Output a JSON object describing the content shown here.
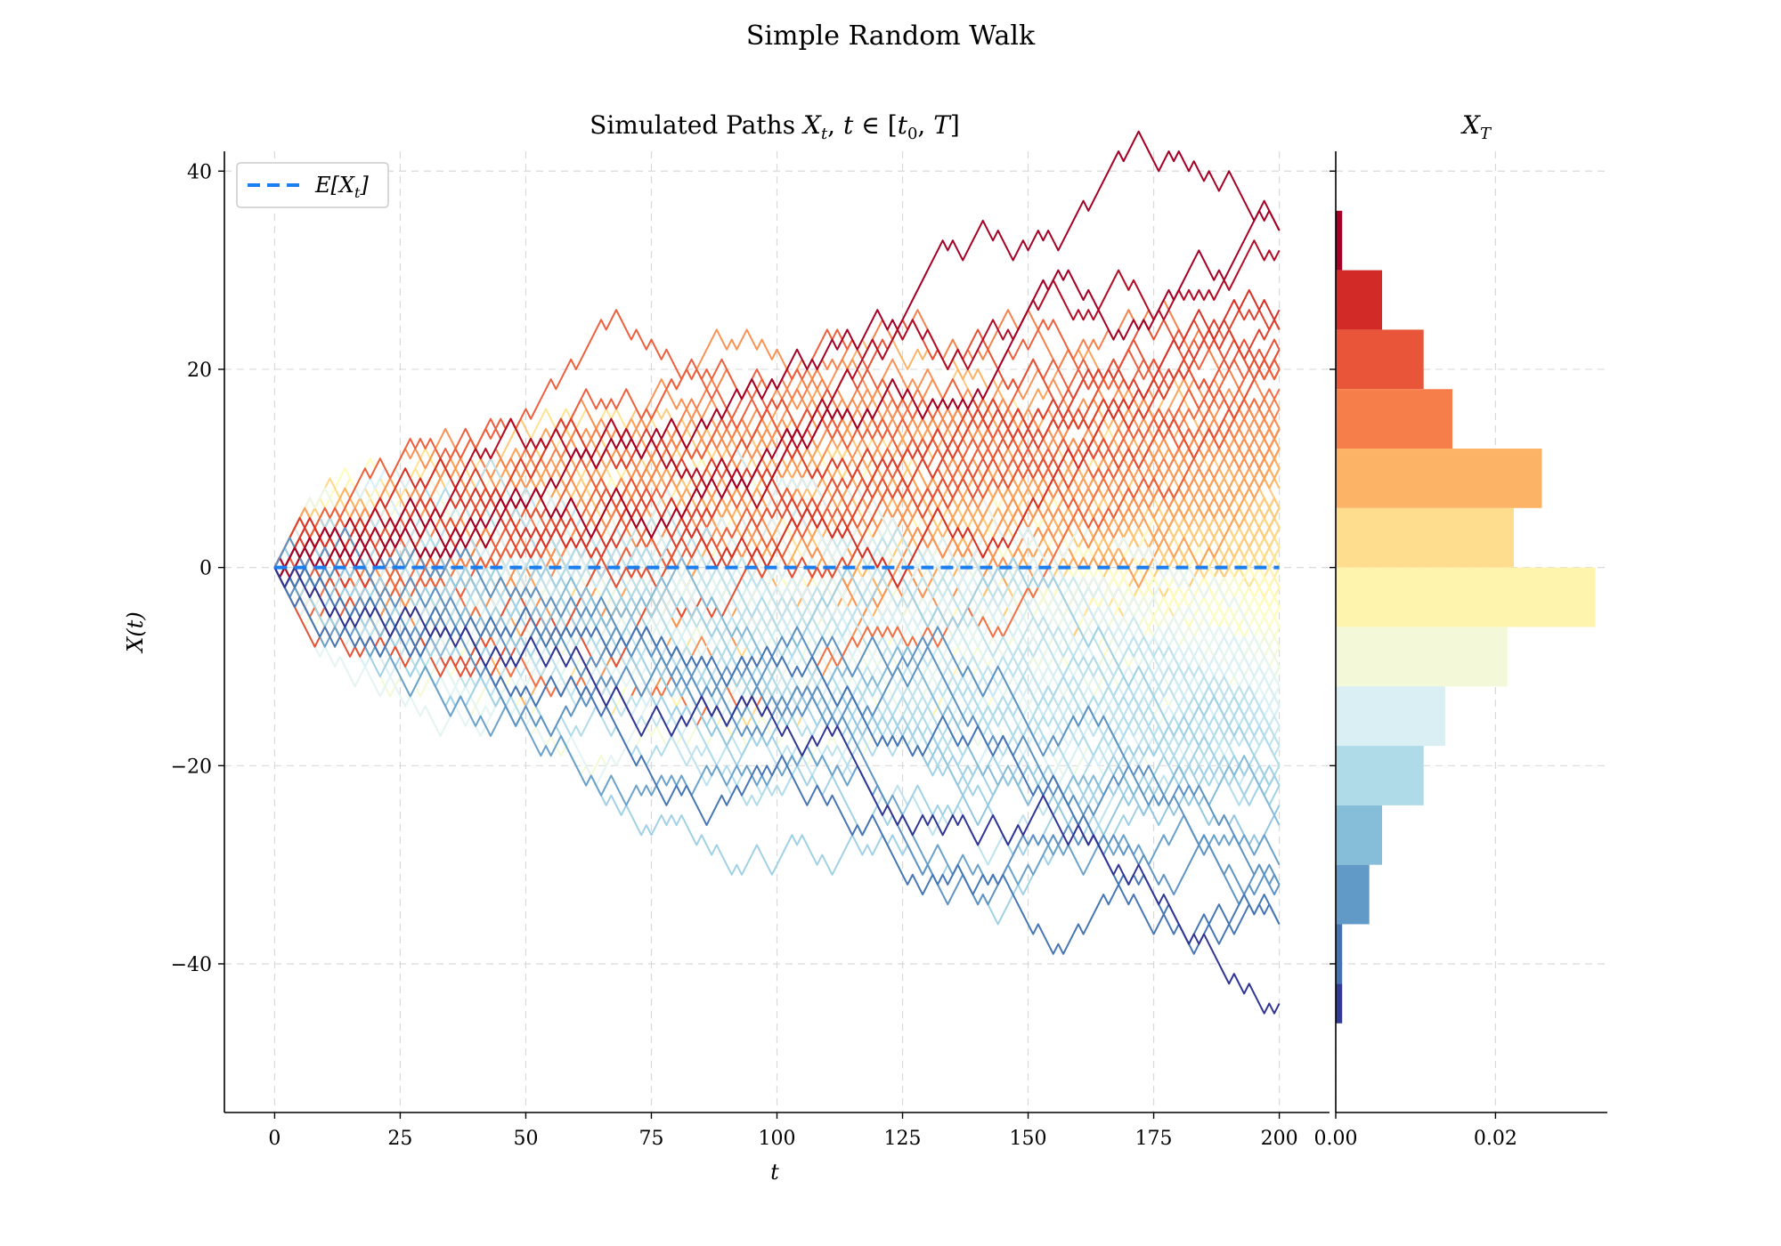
{
  "figure": {
    "suptitle": "Simple Random Walk"
  },
  "chart_data": [
    {
      "type": "line",
      "title": "Simulated Paths X_t, t ∈ [t_0, T]",
      "xlabel": "t",
      "ylabel": "X(t)",
      "xlim": [
        -10,
        210
      ],
      "ylim": [
        -55,
        42
      ],
      "xticks": [
        0,
        25,
        50,
        75,
        100,
        125,
        150,
        175,
        200
      ],
      "yticks": [
        -40,
        -20,
        0,
        20,
        40
      ],
      "ytick_labels": [
        "−40",
        "−20",
        "0",
        "20",
        "40"
      ],
      "grid": true,
      "legend_placement": "top-left",
      "legend": [
        {
          "label": "E[X_t]",
          "style": "dashed",
          "color": "#1a7ef0"
        }
      ],
      "mean_line": {
        "x": [
          0,
          200
        ],
        "y": [
          0,
          0
        ],
        "color": "#1a7ef0"
      },
      "n_paths_drawn": 200,
      "steps": 200,
      "step_size": 1,
      "colormap": "RdYlBu_r",
      "series_note": "paths colored by terminal value X_T"
    },
    {
      "type": "bar",
      "orientation": "horizontal",
      "title": "X_T",
      "xticks": [
        0.0,
        0.02
      ],
      "xtick_labels": [
        "0.00",
        "0.02"
      ],
      "xlim": [
        0,
        0.034
      ],
      "grid": true,
      "bins": [
        {
          "y0": 30,
          "y1": 36,
          "density": 0.0008,
          "color": "#a50026"
        },
        {
          "y0": 24,
          "y1": 30,
          "density": 0.0058,
          "color": "#d22b27"
        },
        {
          "y0": 18,
          "y1": 24,
          "density": 0.011,
          "color": "#e95538"
        },
        {
          "y0": 12,
          "y1": 18,
          "density": 0.0146,
          "color": "#f67e4b"
        },
        {
          "y0": 6,
          "y1": 12,
          "density": 0.0258,
          "color": "#fdb366"
        },
        {
          "y0": 0,
          "y1": 6,
          "density": 0.0223,
          "color": "#fedd8e"
        },
        {
          "y0": -6,
          "y1": 0,
          "density": 0.0325,
          "color": "#fff4ae"
        },
        {
          "y0": -12,
          "y1": -6,
          "density": 0.0215,
          "color": "#f3f9d8"
        },
        {
          "y0": -18,
          "y1": -12,
          "density": 0.0137,
          "color": "#d9eff3"
        },
        {
          "y0": -24,
          "y1": -18,
          "density": 0.011,
          "color": "#afdbe8"
        },
        {
          "y0": -30,
          "y1": -24,
          "density": 0.0058,
          "color": "#86bdd8"
        },
        {
          "y0": -36,
          "y1": -30,
          "density": 0.0042,
          "color": "#6199c7"
        },
        {
          "y0": -42,
          "y1": -36,
          "density": 0.0008,
          "color": "#4572b3"
        },
        {
          "y0": -46,
          "y1": -42,
          "density": 0.0008,
          "color": "#313a94"
        }
      ]
    }
  ]
}
